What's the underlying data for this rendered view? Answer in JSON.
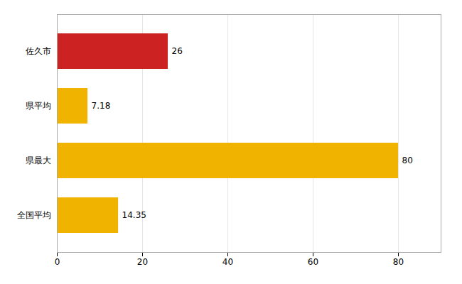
{
  "chart_data": {
    "type": "bar",
    "orientation": "horizontal",
    "categories": [
      "佐久市",
      "県平均",
      "県最大",
      "全国平均"
    ],
    "values": [
      26,
      7.18,
      80,
      14.35
    ],
    "colors": [
      "#cc2222",
      "#f0b400",
      "#f0b400",
      "#f0b400"
    ],
    "xlim": [
      0,
      90
    ],
    "xticks": [
      0,
      20,
      40,
      60,
      80
    ],
    "grid": true,
    "data_labels": true
  }
}
